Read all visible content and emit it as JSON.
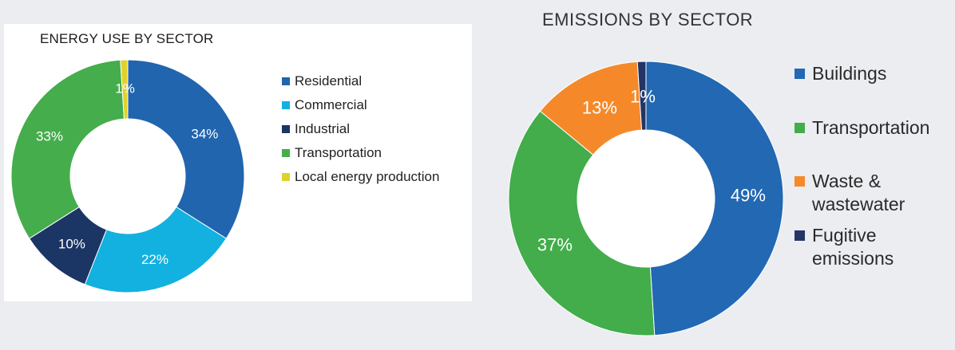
{
  "chart_data": [
    {
      "type": "pie",
      "title": "ENERGY USE BY SECTOR",
      "categories": [
        "Residential",
        "Commercial",
        "Industrial",
        "Transportation",
        "Local energy production"
      ],
      "values": [
        34,
        22,
        10,
        33,
        1
      ],
      "value_labels": [
        "34%",
        "22%",
        "10%",
        "33%",
        "1%"
      ],
      "colors": [
        "#2065ad",
        "#12b1e0",
        "#1b3565",
        "#45ad4c",
        "#e2d12b"
      ],
      "donut": true,
      "legend_position": "right"
    },
    {
      "type": "pie",
      "title": "EMISSIONS BY SECTOR",
      "categories": [
        "Buildings",
        "Transportation",
        "Waste & wastewater",
        "Fugitive emissions"
      ],
      "values": [
        49,
        37,
        13,
        1
      ],
      "value_labels": [
        "49%",
        "37%",
        "13%",
        "1%"
      ],
      "colors": [
        "#2268b2",
        "#42ad4a",
        "#f5892a",
        "#243466"
      ],
      "donut": true,
      "legend_position": "right"
    }
  ]
}
